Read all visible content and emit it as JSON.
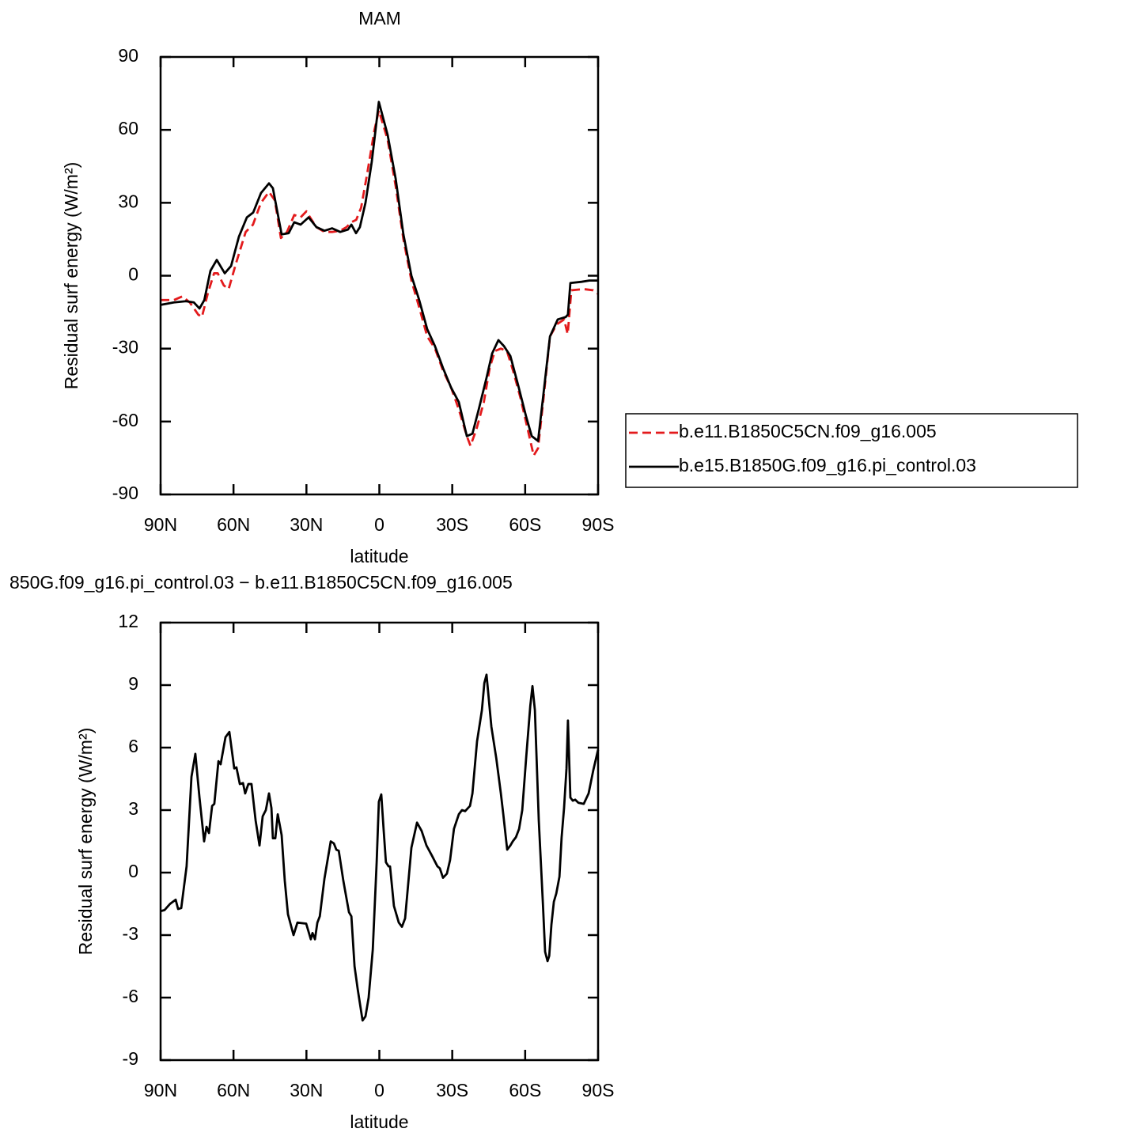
{
  "chart_data": [
    {
      "type": "line",
      "title": "MAM",
      "xlabel": "latitude",
      "ylabel": "Residual surf energy (W/m²)",
      "xlim": [
        90,
        -90
      ],
      "xticks": [
        {
          "value": 90,
          "label": "90N"
        },
        {
          "value": 60,
          "label": "60N"
        },
        {
          "value": 30,
          "label": "30N"
        },
        0,
        {
          "value": -30,
          "label": "30S"
        },
        {
          "value": -60,
          "label": "60S"
        },
        {
          "value": -90,
          "label": "90S"
        }
      ],
      "ylim": [
        -90,
        90
      ],
      "yticks": [
        -90,
        -60,
        -30,
        0,
        30,
        60,
        90
      ],
      "legend": "outside-right",
      "series": [
        {
          "name": "b.e11.B1850C5CN.f09_g16.005",
          "color": "#e31a1c",
          "style": "dashed",
          "x": [
            90,
            84.5,
            81,
            78,
            74.5,
            73,
            70.5,
            68,
            66.5,
            64,
            62,
            59,
            55,
            52,
            48.7,
            45.4,
            43,
            40.5,
            38,
            35,
            32.4,
            30,
            28.5,
            25.9,
            22.6,
            19.4,
            16.1,
            13.5,
            11.5,
            9.5,
            7.5,
            5,
            2,
            0.2,
            -3.4,
            -6.7,
            -9.9,
            -13.2,
            -16.4,
            -19.7,
            -22.9,
            -26.2,
            -29.5,
            -32.7,
            -36,
            -37.5,
            -40,
            -43,
            -45.4,
            -47.5,
            -50,
            -52.5,
            -55,
            -58,
            -61,
            -63.5,
            -65.3,
            -67.6,
            -70.2,
            -73,
            -76,
            -77.5,
            -79,
            -84,
            -88,
            -90
          ],
          "values": [
            -10,
            -10,
            -8.5,
            -11,
            -16,
            -17,
            -7,
            1,
            1,
            -4,
            -5.5,
            5,
            18,
            21,
            30,
            34.5,
            31,
            15.5,
            18,
            25,
            24,
            26.5,
            24,
            20,
            18,
            18,
            18.5,
            20,
            22,
            23,
            28,
            42,
            60,
            68,
            56,
            37,
            15,
            -2,
            -13,
            -25,
            -30,
            -39,
            -46,
            -55,
            -66,
            -70,
            -63,
            -52,
            -38,
            -31,
            -30,
            -31,
            -39,
            -50,
            -63,
            -74,
            -71,
            -50,
            -25,
            -20,
            -18,
            -24,
            -6,
            -5.5,
            -6,
            -7.5
          ]
        },
        {
          "name": "b.e15.B1850G.f09_g16.pi_control.03",
          "color": "#000000",
          "style": "solid",
          "x": [
            90,
            84.5,
            79.6,
            76.3,
            74,
            72,
            69.5,
            66.9,
            63.6,
            61,
            57.8,
            54.5,
            51.9,
            48.7,
            45.4,
            43.8,
            42.1,
            40.2,
            37.3,
            35,
            32.4,
            29.1,
            25.9,
            22.6,
            19.4,
            16.1,
            12.9,
            11.5,
            9.6,
            8,
            5.7,
            3.1,
            0.2,
            -3.4,
            -6.7,
            -9.9,
            -13.2,
            -16.4,
            -19.7,
            -22.9,
            -26.2,
            -29.5,
            -32.7,
            -36,
            -38.3,
            -40.9,
            -44.1,
            -46.4,
            -49,
            -51.3,
            -53.9,
            -57.1,
            -60.4,
            -62.7,
            -65.3,
            -67.6,
            -70.2,
            -73.4,
            -76.7,
            -77.6,
            -78.6,
            -83.2,
            -86.4,
            -90
          ],
          "values": [
            -12,
            -11,
            -10.5,
            -11,
            -13.5,
            -10,
            2,
            6.5,
            1,
            4,
            16,
            24,
            26,
            34,
            38,
            36,
            27,
            17,
            17.5,
            22,
            21,
            24,
            20,
            18.5,
            19.5,
            18,
            19,
            21,
            17.5,
            20,
            30,
            47,
            71.5,
            58,
            40,
            17,
            0,
            -10,
            -22,
            -29,
            -38,
            -46,
            -52,
            -66,
            -65,
            -55,
            -42,
            -32,
            -26.5,
            -29,
            -33,
            -45,
            -58,
            -66,
            -68,
            -48,
            -25,
            -18,
            -17,
            -16,
            -3,
            -2.5,
            -2,
            -2
          ]
        }
      ]
    },
    {
      "type": "line",
      "title": "850G.f09_g16.pi_control.03 − b.e11.B1850C5CN.f09_g16.005",
      "xlabel": "latitude",
      "ylabel": "Residual surf energy (W/m²)",
      "xlim": [
        90,
        -90
      ],
      "xticks": [
        {
          "value": 90,
          "label": "90N"
        },
        {
          "value": 60,
          "label": "60N"
        },
        {
          "value": 30,
          "label": "30N"
        },
        0,
        {
          "value": -30,
          "label": "30S"
        },
        {
          "value": -60,
          "label": "60S"
        },
        {
          "value": -90,
          "label": "90S"
        }
      ],
      "ylim": [
        -9,
        12
      ],
      "yticks": [
        -9,
        -6,
        -3,
        0,
        3,
        6,
        9,
        12
      ],
      "series": [
        {
          "color": "#000000",
          "style": "solid",
          "x": [
            90,
            88.4,
            86.1,
            83.8,
            82.8,
            81.5,
            79.3,
            77.3,
            75.7,
            74,
            72.1,
            71.1,
            70.1,
            68.8,
            67.9,
            66.2,
            65.3,
            63.3,
            61.7,
            59.7,
            58.8,
            57.4,
            56.1,
            55.2,
            53.9,
            52.6,
            50.9,
            49.3,
            48,
            46.7,
            45.4,
            44.4,
            43.8,
            42.8,
            41.8,
            40.2,
            38.9,
            37.6,
            35.3,
            33.7,
            30.1,
            28.2,
            27.5,
            26.5,
            25.5,
            24.5,
            22.6,
            20,
            18.7,
            17.7,
            16.7,
            14.8,
            12.5,
            11.5,
            10.2,
            8.9,
            6.9,
            5.7,
            4.4,
            2.7,
            1.1,
            0.2,
            -0.8,
            -1.8,
            -2.7,
            -3.8,
            -4.4,
            -6,
            -8,
            -9.3,
            -10.6,
            -13.2,
            -15.5,
            -17.4,
            -19.4,
            -21.7,
            -23.9,
            -24.9,
            -26.2,
            -27.8,
            -29.1,
            -30.7,
            -32.7,
            -34,
            -35.3,
            -37.3,
            -38.3,
            -40.2,
            -42.2,
            -43.2,
            -44.1,
            -46.1,
            -48.1,
            -50,
            -51,
            -52.6,
            -53.9,
            -54.9,
            -56.2,
            -57.5,
            -58.8,
            -60.4,
            -62.1,
            -63,
            -64,
            -65.6,
            -67.3,
            -68.2,
            -69.2,
            -69.9,
            -70.8,
            -71.8,
            -72.8,
            -74.1,
            -75,
            -76,
            -77,
            -77.6,
            -78.6,
            -79.6,
            -80.6,
            -81.9,
            -84.1,
            -86.1,
            -88,
            -90
          ],
          "values": [
            -1.85,
            -1.8,
            -1.5,
            -1.3,
            -1.75,
            -1.7,
            0.3,
            4.6,
            5.7,
            3.6,
            1.5,
            2.2,
            1.9,
            3.2,
            3.3,
            5.35,
            5.2,
            6.5,
            6.75,
            5.0,
            5.05,
            4.25,
            4.3,
            3.8,
            4.25,
            4.25,
            2.5,
            1.3,
            2.7,
            3.0,
            3.8,
            3.1,
            1.65,
            1.65,
            2.8,
            1.8,
            -0.4,
            -2.0,
            -3.0,
            -2.4,
            -2.45,
            -3.2,
            -2.9,
            -3.2,
            -2.4,
            -2.1,
            -0.3,
            1.5,
            1.4,
            1.1,
            1.05,
            -0.4,
            -1.9,
            -2.1,
            -4.5,
            -5.6,
            -7.1,
            -6.9,
            -6.0,
            -3.7,
            0.5,
            3.4,
            3.75,
            2.0,
            0.5,
            0.3,
            0.3,
            -1.6,
            -2.4,
            -2.6,
            -2.2,
            1.2,
            2.4,
            2.0,
            1.3,
            0.8,
            0.3,
            0.2,
            -0.25,
            -0.05,
            0.6,
            2.1,
            2.8,
            3.0,
            2.95,
            3.2,
            3.8,
            6.3,
            7.8,
            9.1,
            9.5,
            7.0,
            5.5,
            3.8,
            2.8,
            1.1,
            1.3,
            1.5,
            1.7,
            2.1,
            3.0,
            5.5,
            8.0,
            8.95,
            7.8,
            2.5,
            -1.5,
            -3.8,
            -4.25,
            -4.0,
            -2.5,
            -1.4,
            -1.0,
            -0.2,
            1.7,
            3.1,
            5.0,
            7.3,
            3.6,
            3.45,
            3.5,
            3.35,
            3.3,
            3.8,
            4.9,
            5.9
          ]
        }
      ]
    }
  ]
}
